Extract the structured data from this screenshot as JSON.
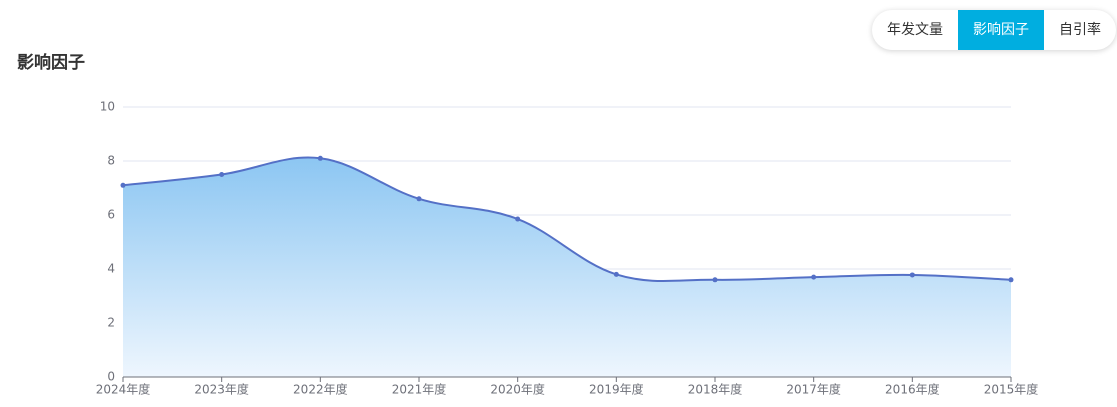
{
  "tabs": [
    "年发文量",
    "影响因子",
    "自引率"
  ],
  "active_tab": 1,
  "chart_data": {
    "type": "area",
    "title": "影响因子",
    "categories": [
      "2024年度",
      "2023年度",
      "2022年度",
      "2021年度",
      "2020年度",
      "2019年度",
      "2018年度",
      "2017年度",
      "2016年度",
      "2015年度"
    ],
    "values": [
      7.1,
      7.5,
      8.1,
      6.6,
      5.85,
      3.8,
      3.6,
      3.7,
      3.78,
      3.6
    ],
    "color": "#5470c6",
    "ylim": [
      0,
      10
    ],
    "yticks": [
      0,
      2,
      4,
      6,
      8,
      10
    ],
    "grid": true
  }
}
